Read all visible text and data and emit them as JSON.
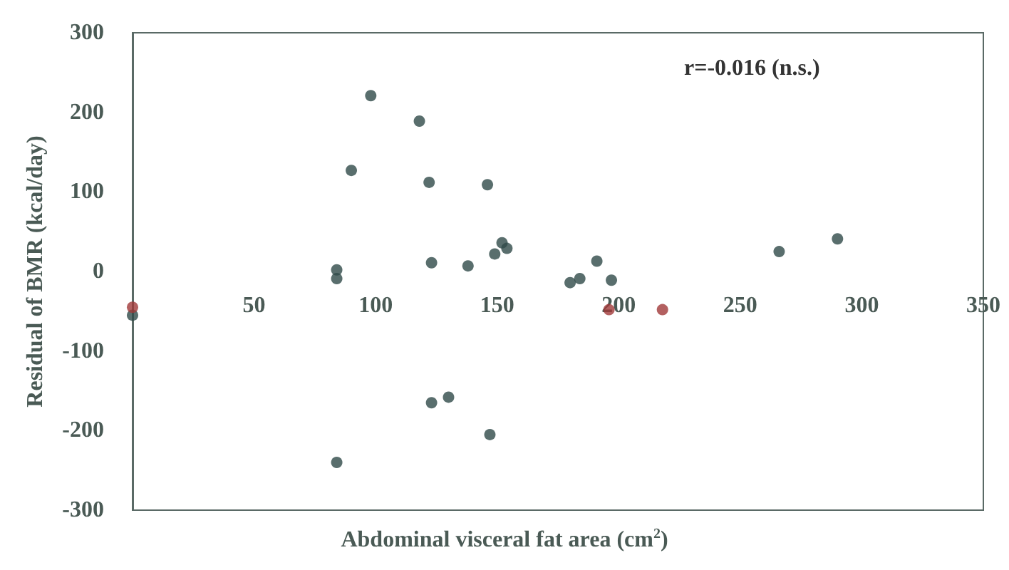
{
  "chart_data": {
    "type": "scatter",
    "xlabel": "Abdominal visceral fat area (cm$^{2}$)",
    "ylabel": "Residual of BMR (kcal/day)",
    "annotations": [
      "r=-0.016 (n.s.)"
    ],
    "xlim": [
      0,
      350
    ],
    "xticks": [
      50,
      100,
      150,
      200,
      250,
      300,
      350
    ],
    "ylim": [
      -300,
      300
    ],
    "yticks": [
      -300,
      -200,
      -100,
      0,
      100,
      200,
      300
    ],
    "grid": false,
    "marker": "circle",
    "series": [
      {
        "color": "#2f4a48",
        "x": [
          98,
          118,
          90,
          122,
          146,
          152,
          154,
          149,
          123,
          138,
          84,
          84,
          266,
          290,
          191,
          180,
          184,
          197,
          123,
          130,
          147,
          84,
          0
        ],
        "values": [
          221,
          189,
          127,
          112,
          109,
          36,
          29,
          22,
          11,
          7,
          2,
          -9,
          25,
          41,
          13,
          -14,
          -9,
          -11,
          -165,
          -158,
          -205,
          -240,
          -55
        ]
      },
      {
        "color": "#a03838",
        "x": [
          0,
          196,
          218
        ],
        "values": [
          -45,
          -48,
          -48
        ]
      }
    ]
  }
}
